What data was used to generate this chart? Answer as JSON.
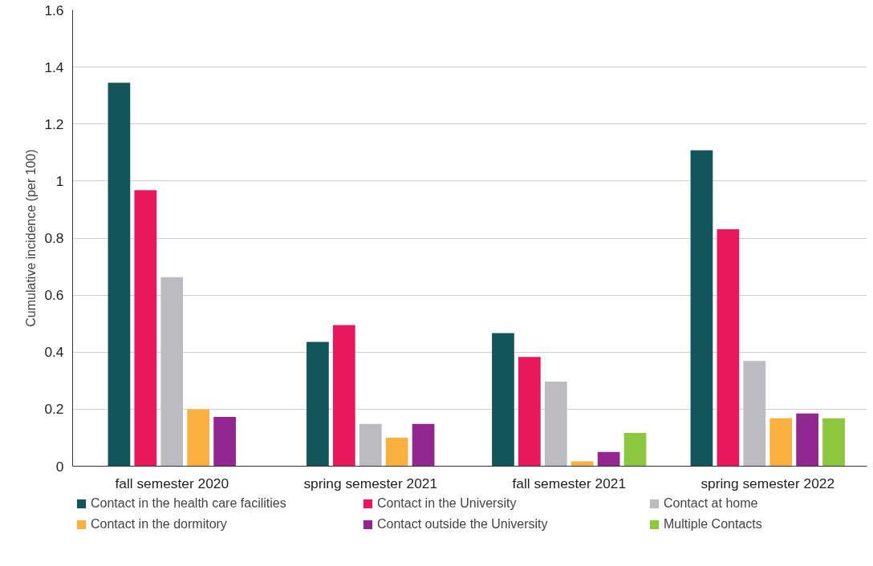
{
  "chart_data": {
    "type": "bar",
    "ylabel": "Cumulative incidence (per 100)",
    "categories": [
      "fall semester 2020",
      "spring semester 2021",
      "fall semester 2021",
      "spring semester 2022"
    ],
    "series": [
      {
        "name": "Contact in the health care facilities",
        "color": "#12555a",
        "values": [
          1.345,
          0.436,
          0.467,
          1.108
        ]
      },
      {
        "name": "Contact in the University",
        "color": "#e8185a",
        "values": [
          0.968,
          0.495,
          0.383,
          0.831
        ]
      },
      {
        "name": "Contact at home",
        "color": "#bcbcc0",
        "values": [
          0.663,
          0.148,
          0.297,
          0.369
        ]
      },
      {
        "name": "Contact in the dormitory",
        "color": "#fbb040",
        "values": [
          0.199,
          0.1,
          0.017,
          0.168
        ]
      },
      {
        "name": "Contact outside the University",
        "color": "#92278f",
        "values": [
          0.173,
          0.148,
          0.05,
          0.185
        ]
      },
      {
        "name": "Multiple Contacts",
        "color": "#8dc63f",
        "values": [
          null,
          null,
          0.117,
          0.168
        ]
      }
    ],
    "ylim": [
      0,
      1.6
    ],
    "yticks": [
      0,
      0.2,
      0.4,
      0.6,
      0.8,
      1,
      1.2,
      1.4,
      1.6
    ],
    "grid": "y",
    "legend": "bottom"
  }
}
